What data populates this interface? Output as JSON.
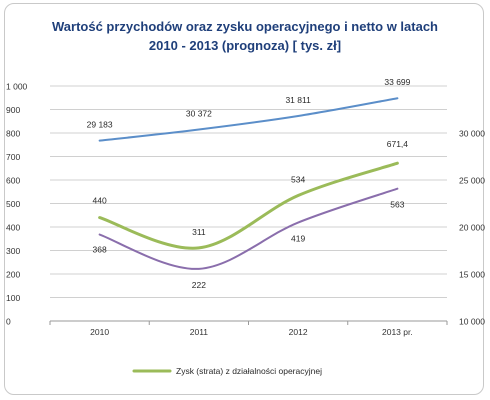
{
  "chart_data": {
    "type": "line",
    "title_lines": [
      "Wartość przychodów oraz zysku operacyjnego i netto  w latach",
      "2010 - 2013 (prognoza) [ tys. zł]"
    ],
    "categories": [
      "2010",
      "2011",
      "2012",
      "2013 pr."
    ],
    "left_axis": {
      "ylim": [
        0,
        1000
      ],
      "ticks": [
        "0",
        "100",
        "200",
        "300",
        "400",
        "500",
        "600",
        "700",
        "800",
        "900",
        "1 000"
      ]
    },
    "right_axis": {
      "ylim": [
        10000,
        35000
      ],
      "ticks": [
        "10 000",
        "15 000",
        "20 000",
        "25 000",
        "30 000"
      ]
    },
    "grid": true,
    "legend": {
      "placement": "bottom",
      "label": "Zysk (strata) z działalności operacyjnej"
    },
    "series": [
      {
        "axis": "right",
        "color": "#5b8ec9",
        "values": [
          29183,
          30372,
          31811,
          33699
        ],
        "labels": [
          "29 183",
          "30 372",
          "31 811",
          "33 699"
        ]
      },
      {
        "axis": "left",
        "name": "Zysk (strata) z działalności operacyjnej",
        "color": "#9bbb59",
        "values": [
          440,
          311,
          534,
          671.4
        ],
        "labels": [
          "440",
          "311",
          "534",
          "671,4"
        ]
      },
      {
        "axis": "left",
        "color": "#8a6eac",
        "values": [
          368,
          222,
          419,
          563
        ],
        "labels": [
          "368",
          "222",
          "419",
          "563"
        ]
      }
    ]
  }
}
